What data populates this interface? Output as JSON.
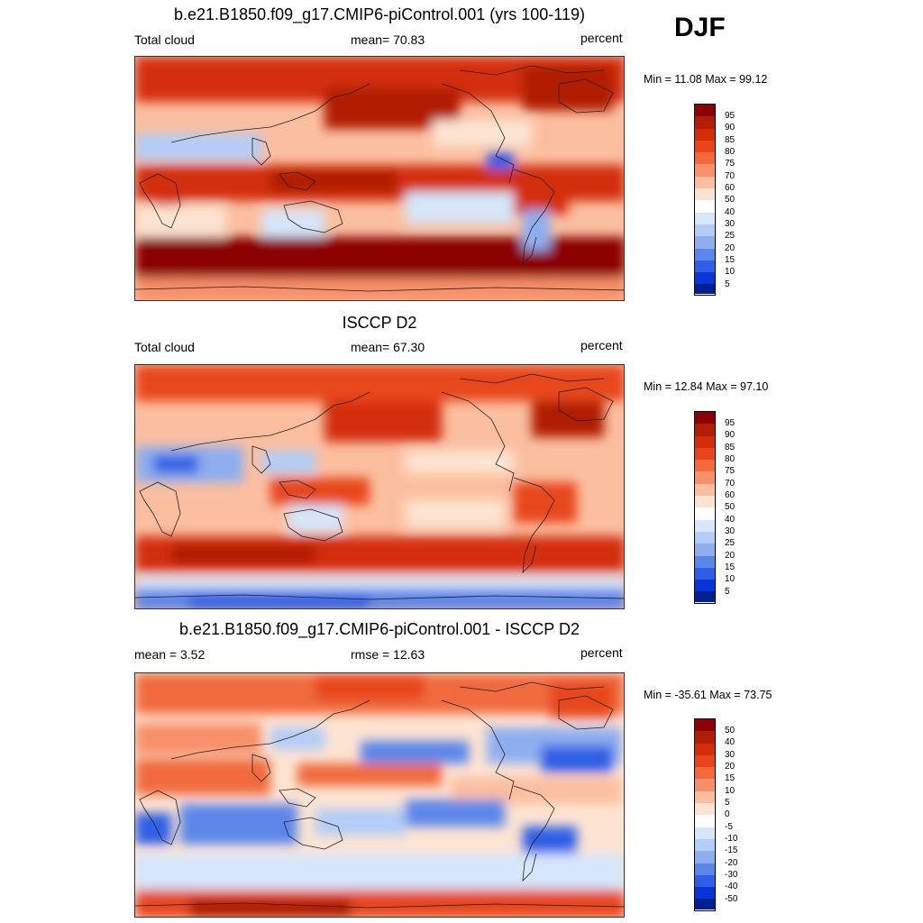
{
  "season": "DJF",
  "panels": [
    {
      "title": "b.e21.B1850.f09_g17.CMIP6-piControl.001 (yrs 100-119)",
      "left_label": "Total cloud",
      "center_label": "mean=  70.83",
      "units": "percent",
      "minmax": "Min =  11.08 Max =  99.12"
    },
    {
      "title": "ISCCP D2",
      "left_label": "Total cloud",
      "center_label": "mean=  67.30",
      "units": "percent",
      "minmax": "Min =  12.84 Max =  97.10"
    },
    {
      "title": "b.e21.B1850.f09_g17.CMIP6-piControl.001 - ISCCP D2",
      "left_label": "mean =   3.52",
      "center_label": "rmse =  12.63",
      "units": "percent",
      "minmax": "Min = -35.61 Max =  73.75"
    }
  ],
  "colorbars": {
    "absolute_levels": [
      "95",
      "90",
      "85",
      "80",
      "75",
      "70",
      "60",
      "50",
      "40",
      "30",
      "25",
      "20",
      "15",
      "10",
      "5"
    ],
    "difference_levels": [
      "50",
      "40",
      "30",
      "20",
      "15",
      "10",
      "5",
      "0",
      "-5",
      "-10",
      "-15",
      "-20",
      "-30",
      "-40",
      "-50"
    ],
    "colors": [
      "#8b0000",
      "#b01e06",
      "#d32d0a",
      "#e8461a",
      "#f06a3c",
      "#f79069",
      "#fbbfa0",
      "#fde4d2",
      "#ffffff",
      "#d6e6fb",
      "#b3cdf6",
      "#8eaef0",
      "#5b86ea",
      "#2f5ee6",
      "#0a35d6",
      "#00208f"
    ]
  }
}
